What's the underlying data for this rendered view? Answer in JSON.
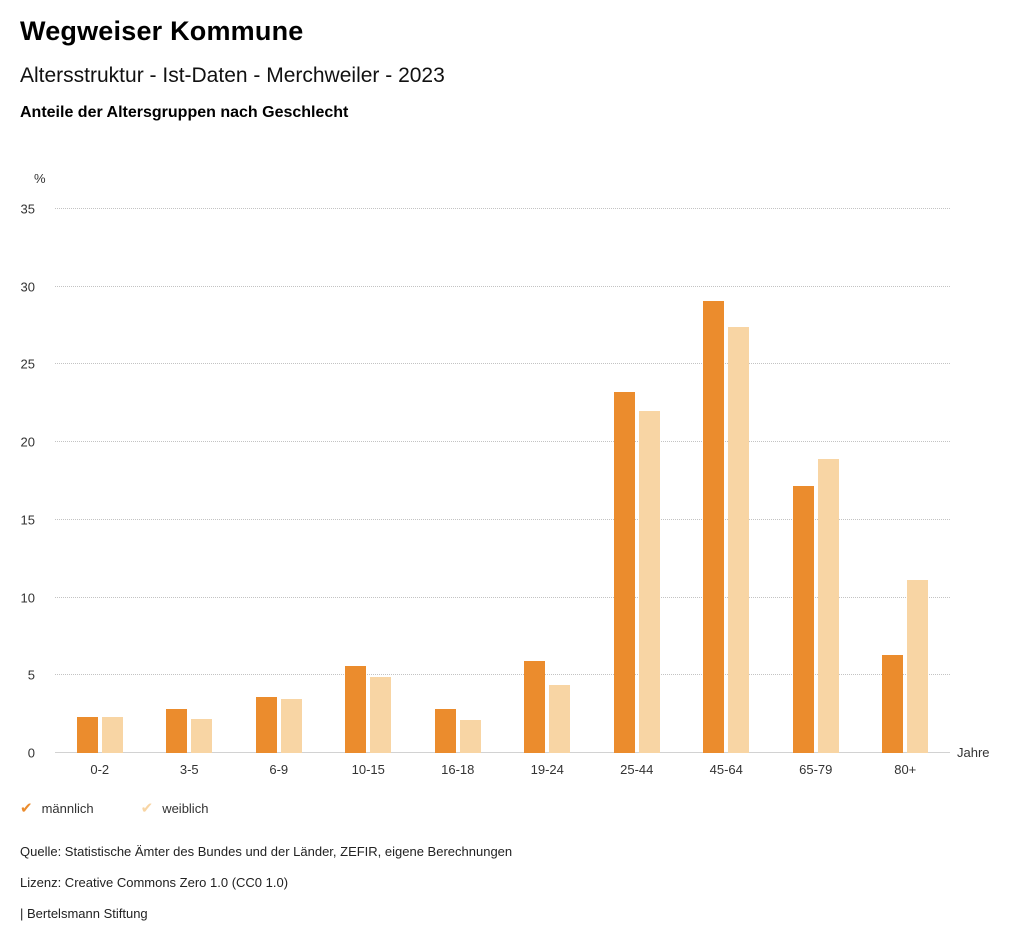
{
  "header": {
    "title": "Wegweiser Kommune",
    "subtitle": "Altersstruktur - Ist-Daten - Merchweiler - 2023",
    "chart_heading": "Anteile der Altersgruppen nach Geschlecht"
  },
  "axes": {
    "y_unit": "%",
    "x_unit": "Jahre"
  },
  "chart_data": {
    "type": "bar",
    "title": "Anteile der Altersgruppen nach Geschlecht",
    "categories": [
      "0-2",
      "3-5",
      "6-9",
      "10-15",
      "16-18",
      "19-24",
      "25-44",
      "45-64",
      "65-79",
      "80+"
    ],
    "series": [
      {
        "name": "männlich",
        "color": "#EB8C2D",
        "values": [
          2.3,
          2.8,
          3.6,
          5.6,
          2.8,
          5.9,
          23.2,
          29.1,
          17.2,
          6.3
        ]
      },
      {
        "name": "weiblich",
        "color": "#F8D5A4",
        "values": [
          2.3,
          2.2,
          3.5,
          4.9,
          2.1,
          4.4,
          22.0,
          27.4,
          18.9,
          11.1
        ]
      }
    ],
    "xlabel": "Jahre",
    "ylabel": "%",
    "ylim": [
      0,
      35
    ],
    "ytick_step": 5,
    "grid": "horizontal-dotted",
    "legend_position": "bottom-left"
  },
  "legend": {
    "items": [
      {
        "label": "männlich",
        "color": "#EB8C2D",
        "marker": "check"
      },
      {
        "label": "weiblich",
        "color": "#F8D5A4",
        "marker": "check"
      }
    ]
  },
  "footer": {
    "source": "Quelle: Statistische Ämter des Bundes und der Länder, ZEFIR, eigene Berechnungen",
    "license": "Lizenz: Creative Commons Zero 1.0 (CC0 1.0)",
    "attribution": "| Bertelsmann Stiftung"
  }
}
